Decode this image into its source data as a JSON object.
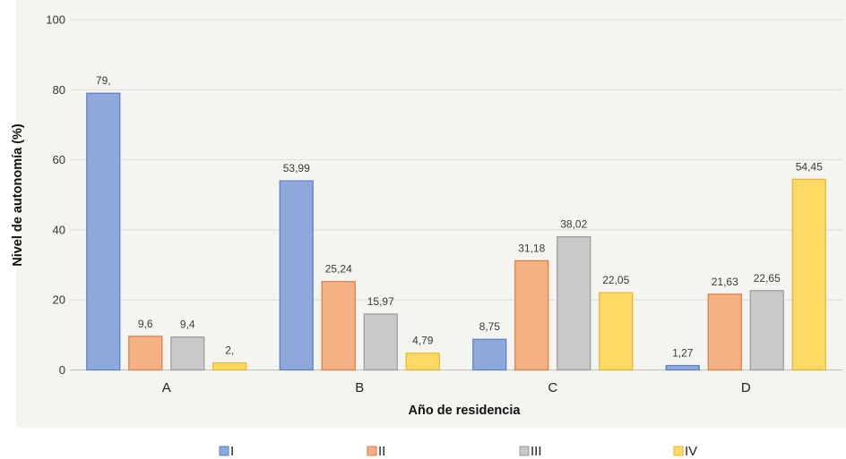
{
  "chart_data": {
    "type": "bar",
    "categories": [
      "A",
      "B",
      "C",
      "D"
    ],
    "series": [
      {
        "name": "I",
        "color": "#8ea9db",
        "stroke": "#5b7ec4",
        "values": [
          79,
          53.99,
          8.75,
          1.27
        ],
        "labels": [
          "79,",
          "53,99",
          "8,75",
          "1,27"
        ]
      },
      {
        "name": "II",
        "color": "#f4b183",
        "stroke": "#e07a3f",
        "values": [
          9.6,
          25.24,
          31.18,
          21.63
        ],
        "labels": [
          "9,6",
          "25,24",
          "31,18",
          "21,63"
        ]
      },
      {
        "name": "III",
        "color": "#c9c9c9",
        "stroke": "#9a9a9a",
        "values": [
          9.4,
          15.97,
          38.02,
          22.65
        ],
        "labels": [
          "9,4",
          "15,97",
          "38,02",
          "22,65"
        ]
      },
      {
        "name": "IV",
        "color": "#ffd966",
        "stroke": "#e8b52a",
        "values": [
          2,
          4.79,
          22.05,
          54.45
        ],
        "labels": [
          "2,",
          "4,79",
          "22,05",
          "54,45"
        ]
      }
    ],
    "yticks": [
      "0",
      "20",
      "40",
      "60",
      "80",
      "100"
    ],
    "ylim": [
      0,
      100
    ],
    "xlabel": "Año de residencia",
    "ylabel": "Nivel de autonomía (%)",
    "grid": true,
    "legend_position": "bottom"
  }
}
